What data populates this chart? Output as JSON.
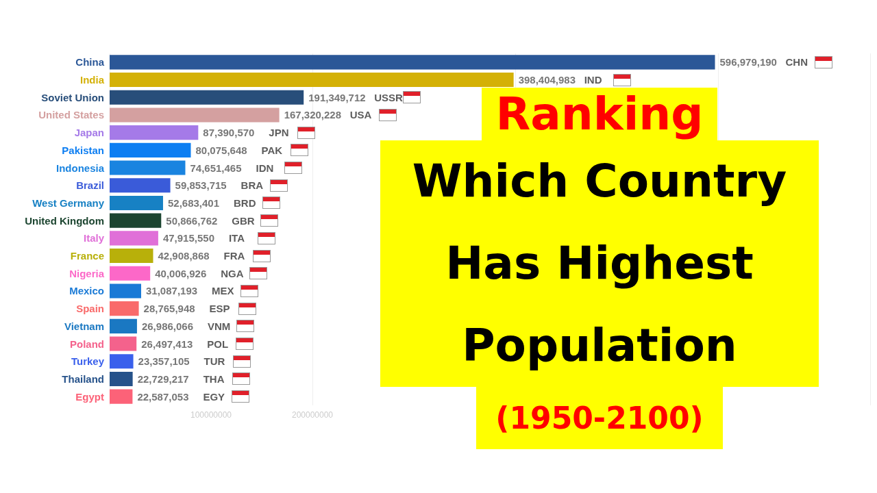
{
  "chart_data": {
    "type": "bar",
    "orientation": "horizontal",
    "title": "Ranking",
    "subtitle": "Which Country Has Highest Population",
    "annotations": [
      "CHN",
      "IND",
      "USSR",
      "USA",
      "JPN",
      "PAK",
      "IDN",
      "BRA",
      "BRD",
      "GBR",
      "ITA",
      "FRA",
      "NGA",
      "MEX",
      "ESP",
      "VNM",
      "POL",
      "TUR",
      "THA",
      "EGY",
      "(1950-2100)"
    ],
    "categories": [
      "China",
      "India",
      "Soviet Union",
      "United States",
      "Japan",
      "Pakistan",
      "Indonesia",
      "Brazil",
      "West Germany",
      "United Kingdom",
      "Italy",
      "France",
      "Nigeria",
      "Mexico",
      "Spain",
      "Vietnam",
      "Poland",
      "Turkey",
      "Thailand",
      "Egypt"
    ],
    "values": [
      596979190,
      398404983,
      191349712,
      167320228,
      87390570,
      80075648,
      74651465,
      59853715,
      52683401,
      50866762,
      47915550,
      42908868,
      40006926,
      31087193,
      28765948,
      26986066,
      26497413,
      23357105,
      22729217,
      22587053
    ],
    "colors": [
      "#2b5797",
      "#d4b106",
      "#284e7a",
      "#d4a0a0",
      "#a57ae8",
      "#0d7ef2",
      "#1a84e0",
      "#3a5bd9",
      "#1781c4",
      "#1c4530",
      "#e070d8",
      "#b8b00a",
      "#fc68c8",
      "#1a7ad6",
      "#f96a6a",
      "#1a78c2",
      "#f4628c",
      "#3a60ec",
      "#26528a",
      "#fc6278"
    ],
    "value_labels": [
      "596,979,190",
      "398,404,983",
      "191,349,712",
      "167,320,228",
      "87,390,570",
      "80,075,648",
      "74,651,465",
      "59,853,715",
      "52,683,401",
      "50,866,762",
      "47,915,550",
      "42,908,868",
      "40,006,926",
      "31,087,193",
      "28,765,948",
      "26,986,066",
      "26,497,413",
      "23,357,105",
      "22,729,217",
      "22,587,053"
    ],
    "xlim": [
      0,
      750000000
    ],
    "xticks": [
      100000000,
      200000000
    ],
    "grid": "x"
  }
}
